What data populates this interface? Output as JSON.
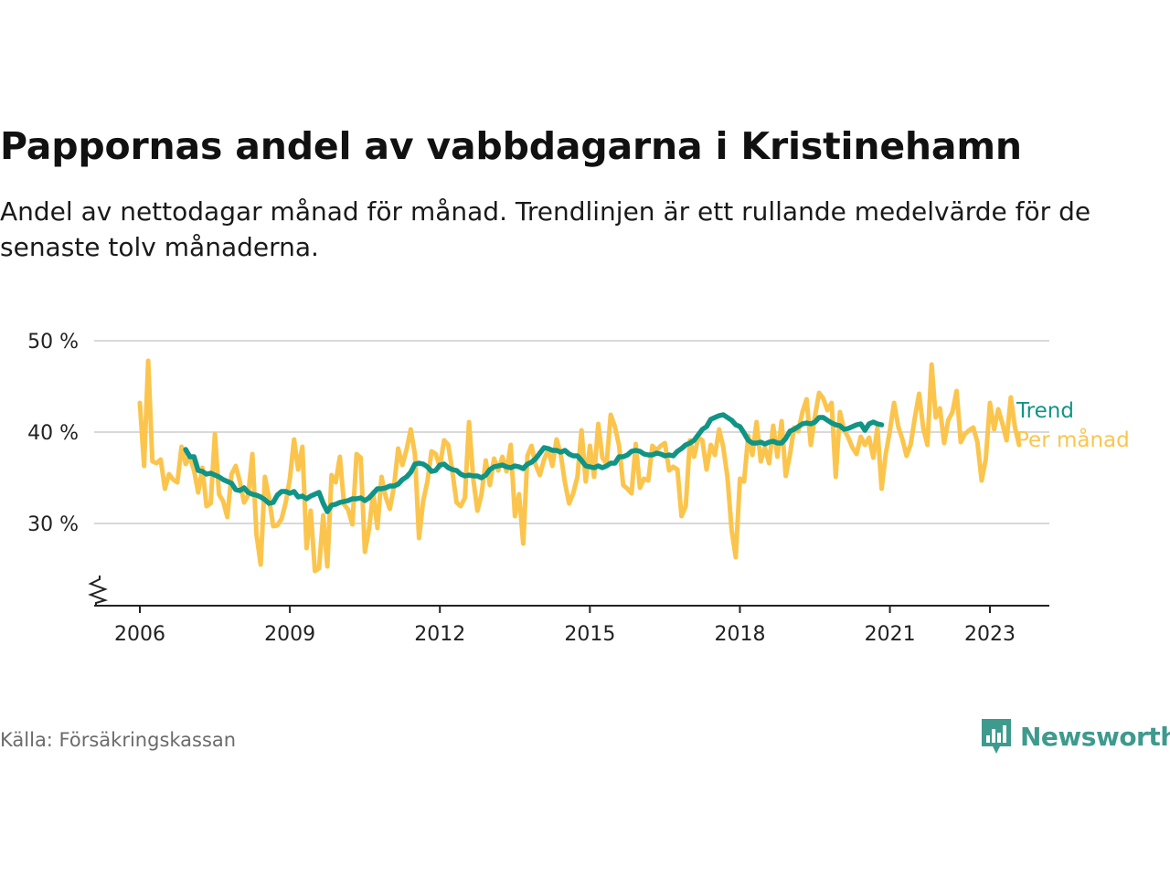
{
  "header": {
    "title": "Pappornas andel av vabbdagarna i Kristinehamn",
    "subtitle": "Andel av nettodagar månad för månad. Trendlinjen är ett rullande medelvärde för de senaste tolv månaderna."
  },
  "footer": {
    "source": "Källa: Försäkringskassan",
    "brand": "Newsworthy"
  },
  "colors": {
    "monthly": "#fbc54d",
    "trend": "#109485",
    "grid": "#d9d9d9",
    "axis": "#222222",
    "brand": "#3e9a8d"
  },
  "icons": [
    "axis-break-icon",
    "newsworthy-logo-icon"
  ],
  "chart_data": {
    "type": "line",
    "title": "",
    "xlabel": "",
    "ylabel": "",
    "xlim": [
      2005.8,
      2023.75
    ],
    "ylim": [
      21,
      50
    ],
    "x_ticks": [
      2006,
      2009,
      2012,
      2015,
      2018,
      2021,
      2023
    ],
    "x_tick_labels": [
      "2006",
      "2009",
      "2012",
      "2015",
      "2018",
      "2021",
      "2023"
    ],
    "y_ticks": [
      30,
      40,
      50
    ],
    "y_tick_labels": [
      "30 %",
      "40 %",
      "50 %"
    ],
    "grid": true,
    "axis_break": true,
    "series": [
      {
        "name": "Per månad",
        "color": "#fbc54d",
        "x_start": 2006.0,
        "x_step": 0.0833333,
        "values": [
          43.2,
          36.3,
          47.8,
          36.8,
          36.6,
          37.0,
          33.8,
          35.4,
          34.8,
          34.5,
          38.4,
          36.5,
          37.3,
          35.8,
          33.4,
          36.1,
          31.9,
          32.2,
          39.8,
          33.2,
          32.4,
          30.7,
          35.4,
          36.3,
          34.6,
          32.3,
          33.1,
          37.6,
          28.8,
          25.5,
          35.1,
          32.8,
          29.7,
          29.8,
          30.5,
          32.3,
          34.9,
          39.2,
          35.9,
          38.4,
          27.3,
          31.4,
          24.8,
          25.1,
          30.9,
          25.3,
          35.3,
          34.5,
          37.3,
          32.1,
          31.5,
          29.9,
          37.6,
          37.2,
          26.9,
          29.4,
          33.4,
          29.5,
          35.1,
          32.9,
          31.6,
          34.1,
          38.2,
          36.4,
          38.1,
          40.3,
          37.6,
          28.4,
          32.5,
          34.6,
          37.9,
          37.6,
          36.2,
          39.1,
          38.6,
          35.7,
          32.3,
          31.9,
          32.8,
          41.1,
          34.9,
          31.4,
          33.2,
          36.9,
          34.2,
          37.1,
          35.8,
          37.3,
          35.7,
          38.6,
          30.8,
          33.2,
          27.8,
          37.4,
          38.5,
          36.4,
          35.3,
          37.0,
          38.1,
          36.3,
          39.2,
          37.6,
          34.5,
          32.2,
          33.3,
          35.1,
          40.2,
          34.6,
          38.5,
          35.1,
          40.9,
          37.2,
          36.5,
          41.9,
          40.6,
          38.5,
          34.2,
          33.8,
          33.3,
          38.7,
          33.9,
          34.9,
          34.7,
          38.5,
          38.0,
          38.5,
          38.8,
          35.8,
          36.2,
          35.9,
          30.8,
          31.9,
          39.1,
          37.3,
          39.4,
          39.1,
          35.9,
          38.6,
          37.5,
          40.3,
          38.4,
          35.1,
          29.3,
          26.3,
          34.9,
          34.6,
          39.6,
          37.5,
          41.1,
          36.8,
          38.3,
          36.6,
          40.7,
          37.3,
          41.2,
          35.2,
          37.5,
          40.5,
          40.1,
          42.2,
          43.6,
          38.6,
          41.7,
          44.3,
          43.7,
          42.4,
          43.2,
          35.1,
          42.2,
          40.3,
          39.4,
          38.3,
          37.6,
          39.5,
          38.6,
          39.4,
          37.2,
          40.5,
          33.8,
          37.6,
          40.2,
          43.2,
          40.6,
          39.2,
          37.4,
          38.7,
          41.6,
          44.2,
          40.4,
          38.6,
          47.4,
          41.6,
          42.6,
          38.8,
          41.3,
          42.2,
          44.5,
          38.9,
          39.8,
          40.2,
          40.5,
          38.9,
          34.7,
          37.0,
          43.2,
          40.3,
          42.5,
          40.9,
          39.1,
          43.8,
          40.5,
          38.6
        ]
      },
      {
        "name": "Trend",
        "color": "#109485",
        "x_start": 2006.9167,
        "x_step": 0.0833333,
        "values": [
          38.1,
          37.3,
          37.3,
          35.8,
          35.7,
          35.4,
          35.5,
          35.3,
          35.1,
          34.8,
          34.6,
          34.4,
          33.7,
          33.6,
          33.9,
          33.4,
          33.2,
          33.1,
          32.9,
          32.6,
          32.2,
          32.3,
          33.1,
          33.5,
          33.5,
          33.3,
          33.5,
          32.9,
          33.0,
          32.7,
          33.0,
          33.2,
          33.4,
          32.2,
          31.3,
          32.0,
          32.1,
          32.3,
          32.4,
          32.5,
          32.7,
          32.7,
          32.8,
          32.5,
          32.8,
          33.3,
          33.8,
          33.8,
          33.9,
          34.1,
          34.1,
          34.3,
          34.8,
          35.1,
          35.6,
          36.5,
          36.6,
          36.5,
          36.2,
          35.7,
          35.8,
          36.4,
          36.5,
          36.1,
          35.9,
          35.8,
          35.4,
          35.2,
          35.3,
          35.2,
          35.2,
          35.0,
          35.3,
          35.9,
          36.2,
          36.3,
          36.4,
          36.2,
          36.1,
          36.3,
          36.2,
          36.0,
          36.5,
          36.7,
          37.1,
          37.7,
          38.3,
          38.2,
          38.0,
          38.0,
          37.8,
          38.0,
          37.6,
          37.4,
          37.4,
          36.9,
          36.3,
          36.2,
          36.1,
          36.3,
          36.1,
          36.3,
          36.6,
          36.6,
          37.3,
          37.3,
          37.5,
          37.9,
          38.0,
          37.9,
          37.6,
          37.5,
          37.5,
          37.7,
          37.6,
          37.4,
          37.5,
          37.4,
          37.9,
          38.2,
          38.6,
          38.8,
          39.1,
          39.7,
          40.3,
          40.6,
          41.4,
          41.6,
          41.8,
          41.9,
          41.6,
          41.3,
          40.8,
          40.6,
          39.9,
          39.1,
          38.8,
          38.8,
          38.9,
          38.7,
          38.9,
          39.0,
          38.8,
          38.8,
          39.3,
          40.1,
          40.3,
          40.6,
          40.9,
          41.0,
          40.9,
          41.1,
          41.6,
          41.6,
          41.3,
          41.0,
          40.8,
          40.7,
          40.3,
          40.4,
          40.6,
          40.8,
          40.9,
          40.2,
          40.9,
          41.1,
          40.9,
          40.8
        ]
      }
    ],
    "series_label_order": [
      "Trend",
      "Per månad"
    ]
  }
}
